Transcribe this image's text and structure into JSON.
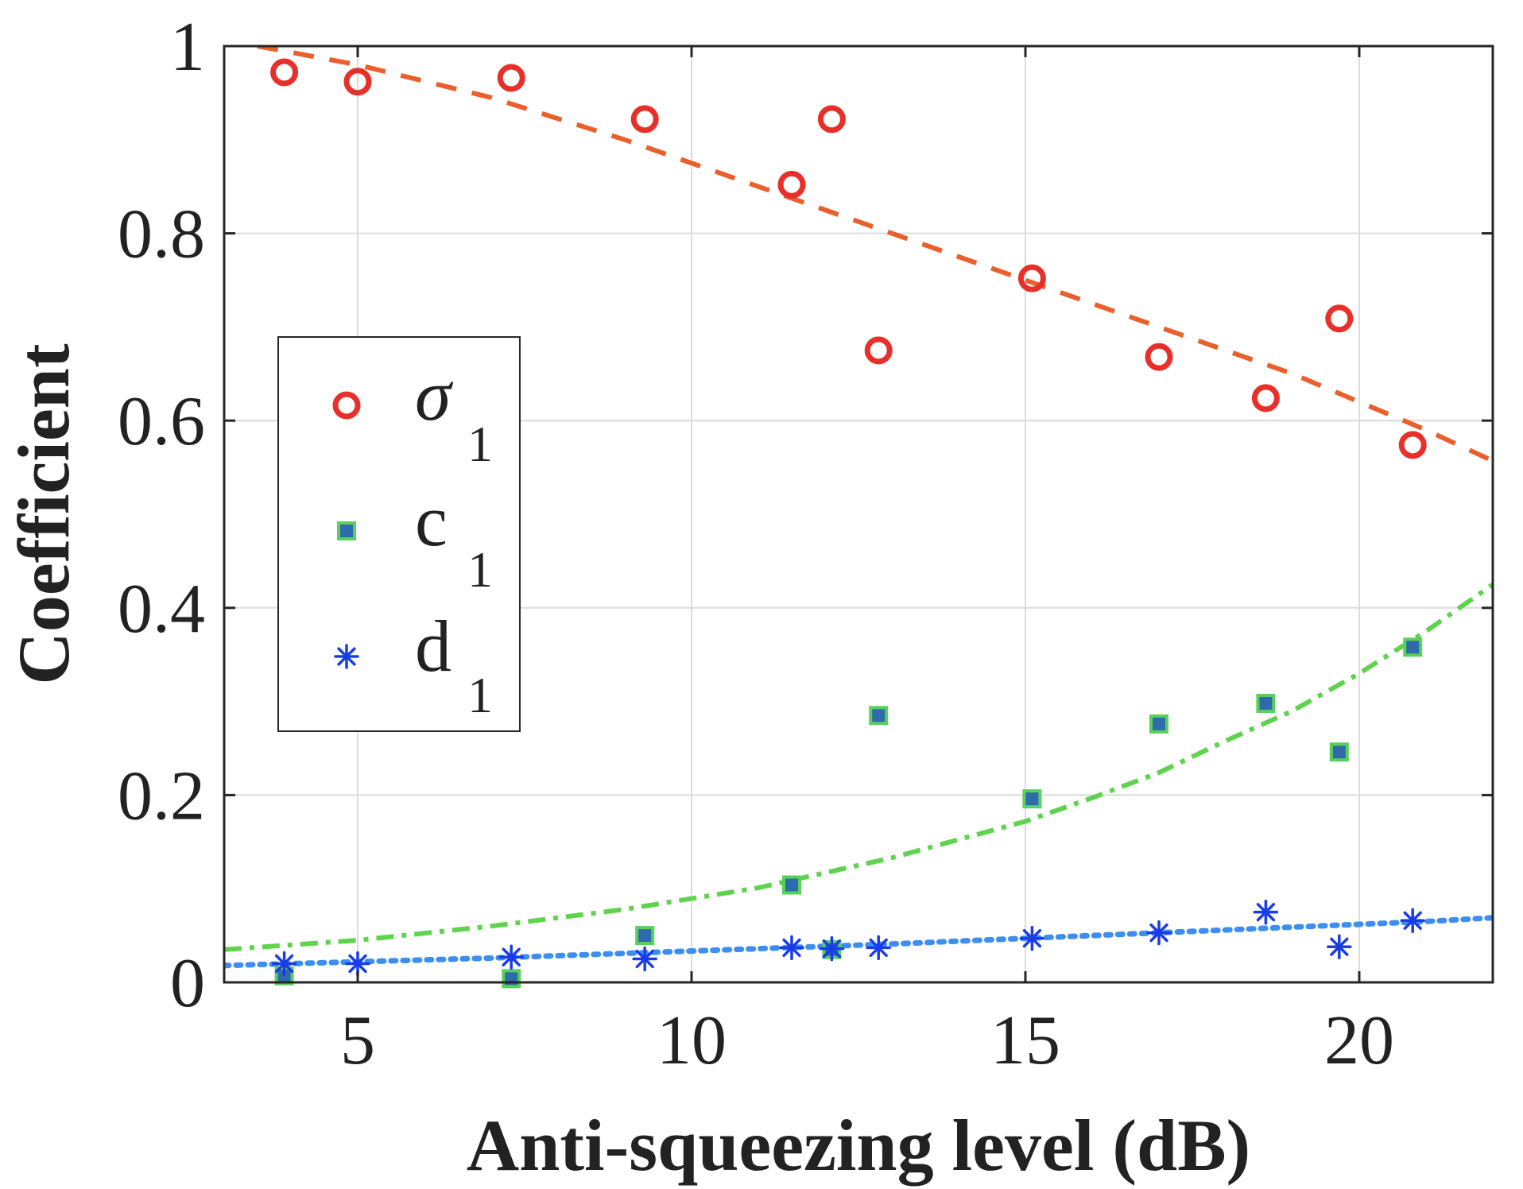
{
  "chart_data": {
    "type": "scatter",
    "title": "",
    "xlabel": "Anti-squeezing level (dB)",
    "ylabel": "Coefficient",
    "xlim": [
      3,
      22
    ],
    "ylim": [
      0,
      1
    ],
    "xticks": [
      5,
      10,
      15,
      20
    ],
    "yticks": [
      0,
      0.2,
      0.4,
      0.6,
      0.8,
      1
    ],
    "xtick_labels": [
      "5",
      "10",
      "15",
      "20"
    ],
    "ytick_labels": [
      "0",
      "0.2",
      "0.4",
      "0.6",
      "0.8",
      "1"
    ],
    "grid": true,
    "legend_position": "middle-left",
    "series": [
      {
        "name": "σ",
        "subscript": "1",
        "marker": "circle",
        "color": "#e8302a",
        "x": [
          3.9,
          5.0,
          7.3,
          9.3,
          11.5,
          12.1,
          12.8,
          15.1,
          17.0,
          18.6,
          19.7,
          20.8
        ],
        "y": [
          0.972,
          0.962,
          0.966,
          0.922,
          0.852,
          0.922,
          0.675,
          0.752,
          0.668,
          0.624,
          0.709,
          0.574
        ]
      },
      {
        "name": "c",
        "subscript": "1",
        "marker": "square",
        "color": "#2f6aaa",
        "edge_color": "#58d15a",
        "x": [
          3.9,
          7.3,
          9.3,
          11.5,
          12.1,
          12.8,
          15.1,
          17.0,
          18.6,
          19.7,
          20.8
        ],
        "y": [
          0.007,
          0.004,
          0.05,
          0.104,
          0.035,
          0.285,
          0.196,
          0.276,
          0.298,
          0.246,
          0.358
        ]
      },
      {
        "name": "d",
        "subscript": "1",
        "marker": "asterisk",
        "color": "#1a3ce8",
        "x": [
          3.9,
          5.0,
          7.3,
          9.3,
          11.5,
          12.1,
          12.8,
          15.1,
          17.0,
          18.6,
          19.7,
          20.8
        ],
        "y": [
          0.02,
          0.02,
          0.027,
          0.025,
          0.037,
          0.036,
          0.037,
          0.047,
          0.053,
          0.075,
          0.038,
          0.066
        ]
      }
    ],
    "fits": [
      {
        "name": "σ1 fit",
        "style": "dashed",
        "color": "#e9602c",
        "x": [
          3.5,
          5,
          7,
          9,
          11,
          13,
          15,
          17,
          19,
          21,
          22
        ],
        "y": [
          1.0,
          0.98,
          0.945,
          0.9,
          0.85,
          0.8,
          0.75,
          0.7,
          0.65,
          0.59,
          0.557
        ]
      },
      {
        "name": "c1 fit",
        "style": "dashdot",
        "color": "#5fd34e",
        "x": [
          3,
          5,
          7,
          9,
          11,
          13,
          15,
          16,
          17,
          18,
          19,
          20,
          21,
          22
        ],
        "y": [
          0.035,
          0.045,
          0.06,
          0.078,
          0.101,
          0.133,
          0.172,
          0.197,
          0.224,
          0.258,
          0.29,
          0.33,
          0.375,
          0.425
        ]
      },
      {
        "name": "d1 fit",
        "style": "dotted",
        "color": "#3d8ef0",
        "x": [
          3,
          5,
          7,
          9,
          11,
          13,
          15,
          17,
          19,
          21,
          22
        ],
        "y": [
          0.018,
          0.022,
          0.026,
          0.031,
          0.036,
          0.041,
          0.047,
          0.053,
          0.059,
          0.065,
          0.069
        ]
      }
    ]
  }
}
